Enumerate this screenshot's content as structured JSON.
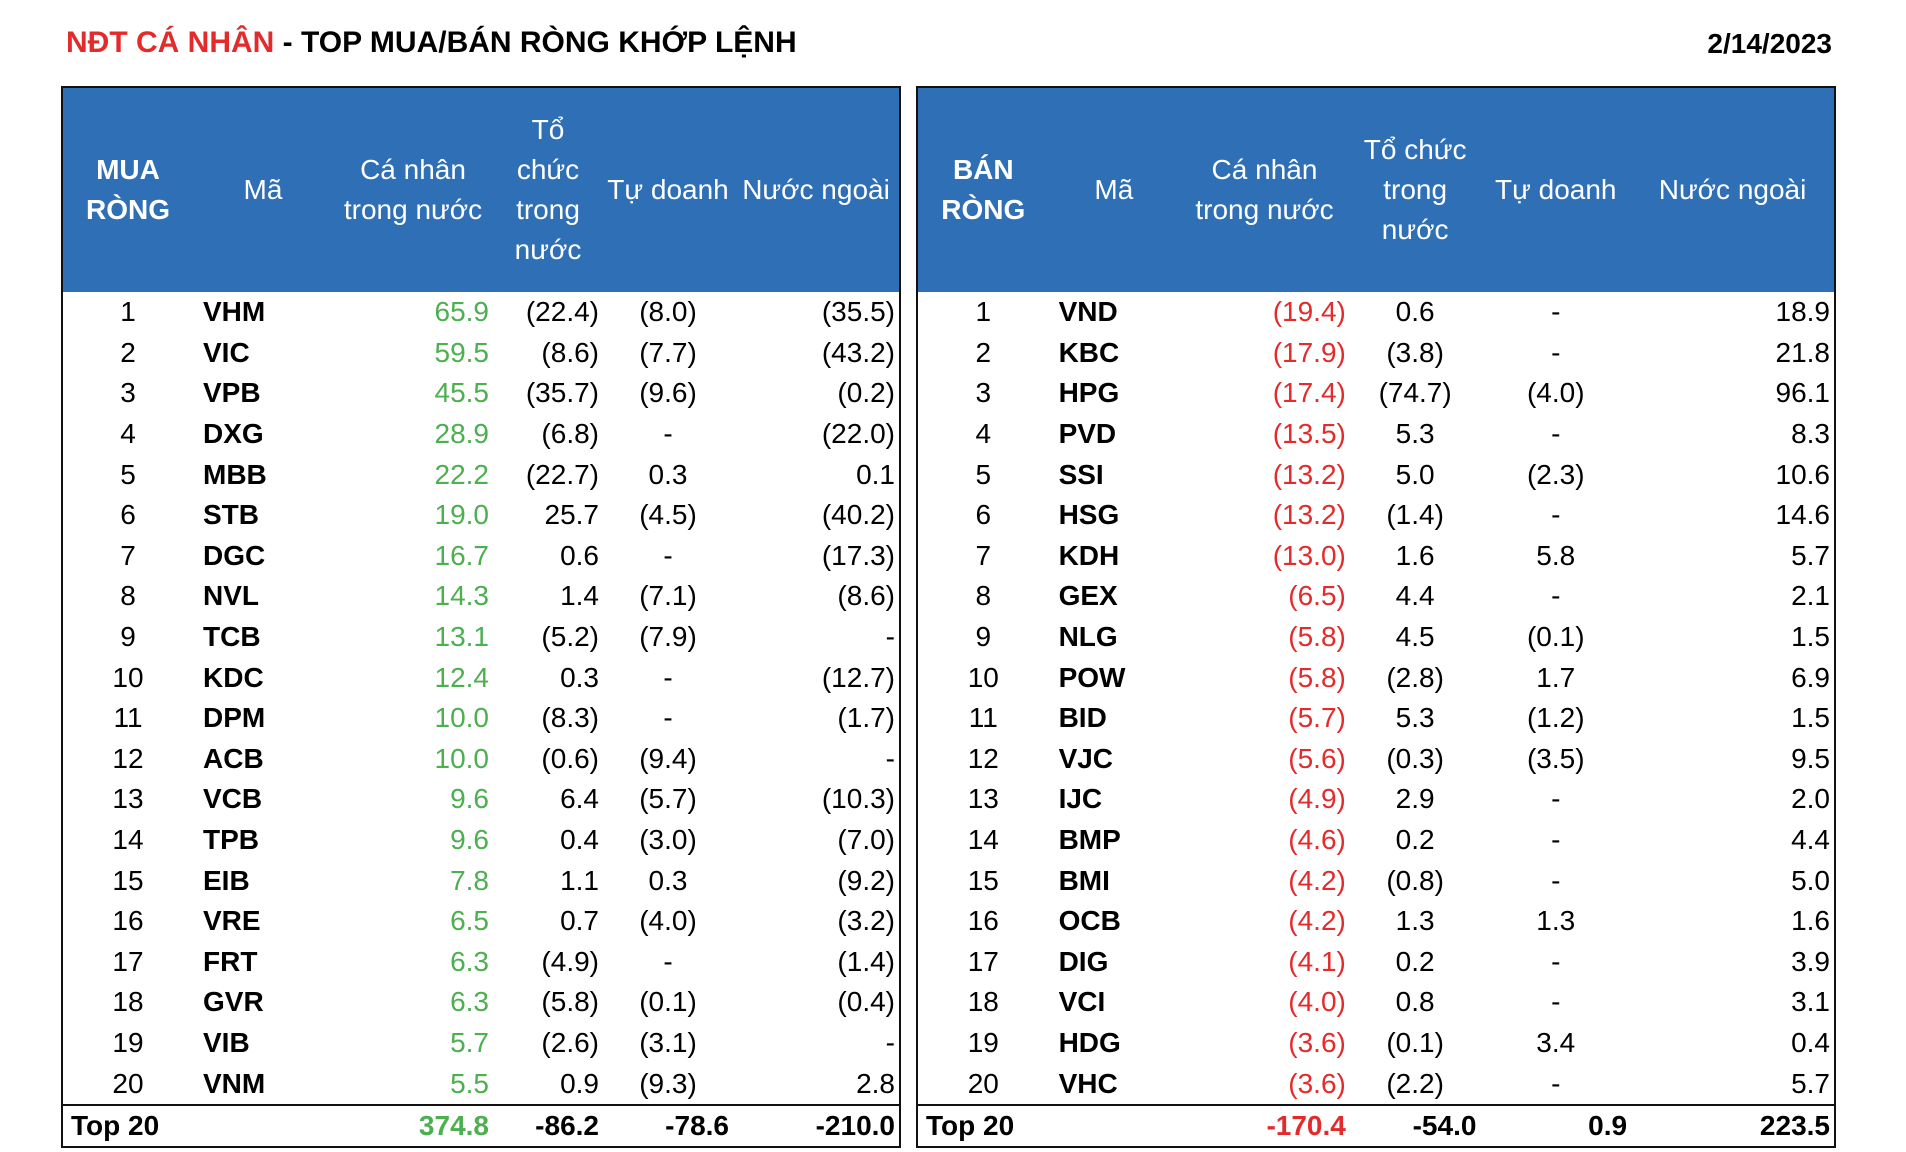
{
  "title": {
    "part_red": "NĐT CÁ NHÂN",
    "part_black": " - TOP MUA/BÁN RÒNG KHỚP LỆNH"
  },
  "date": "2/14/2023",
  "colors": {
    "header_bg": "#2f6fb5",
    "positive": "#4caf50",
    "negative": "#e32b2b"
  },
  "chart_data": {
    "type": "table",
    "buy": {
      "headers": [
        "MUA RÒNG",
        "Mã",
        "Cá nhân trong nước",
        "Tổ chức trong nước",
        "Tự doanh",
        "Nước ngoài"
      ],
      "rows": [
        [
          "1",
          "VHM",
          "65.9",
          "(22.4)",
          "(8.0)",
          "(35.5)"
        ],
        [
          "2",
          "VIC",
          "59.5",
          "(8.6)",
          "(7.7)",
          "(43.2)"
        ],
        [
          "3",
          "VPB",
          "45.5",
          "(35.7)",
          "(9.6)",
          "(0.2)"
        ],
        [
          "4",
          "DXG",
          "28.9",
          "(6.8)",
          "-",
          "(22.0)"
        ],
        [
          "5",
          "MBB",
          "22.2",
          "(22.7)",
          "0.3",
          "0.1"
        ],
        [
          "6",
          "STB",
          "19.0",
          "25.7",
          "(4.5)",
          "(40.2)"
        ],
        [
          "7",
          "DGC",
          "16.7",
          "0.6",
          "-",
          "(17.3)"
        ],
        [
          "8",
          "NVL",
          "14.3",
          "1.4",
          "(7.1)",
          "(8.6)"
        ],
        [
          "9",
          "TCB",
          "13.1",
          "(5.2)",
          "(7.9)",
          "-"
        ],
        [
          "10",
          "KDC",
          "12.4",
          "0.3",
          "-",
          "(12.7)"
        ],
        [
          "11",
          "DPM",
          "10.0",
          "(8.3)",
          "-",
          "(1.7)"
        ],
        [
          "12",
          "ACB",
          "10.0",
          "(0.6)",
          "(9.4)",
          "-"
        ],
        [
          "13",
          "VCB",
          "9.6",
          "6.4",
          "(5.7)",
          "(10.3)"
        ],
        [
          "14",
          "TPB",
          "9.6",
          "0.4",
          "(3.0)",
          "(7.0)"
        ],
        [
          "15",
          "EIB",
          "7.8",
          "1.1",
          "0.3",
          "(9.2)"
        ],
        [
          "16",
          "VRE",
          "6.5",
          "0.7",
          "(4.0)",
          "(3.2)"
        ],
        [
          "17",
          "FRT",
          "6.3",
          "(4.9)",
          "-",
          "(1.4)"
        ],
        [
          "18",
          "GVR",
          "6.3",
          "(5.8)",
          "(0.1)",
          "(0.4)"
        ],
        [
          "19",
          "VIB",
          "5.7",
          "(2.6)",
          "(3.1)",
          "-"
        ],
        [
          "20",
          "VNM",
          "5.5",
          "0.9",
          "(9.3)",
          "2.8"
        ]
      ],
      "total": [
        "Top 20",
        "374.8",
        "-86.2",
        "-78.6",
        "-210.0"
      ]
    },
    "sell": {
      "headers": [
        "BÁN RÒNG",
        "Mã",
        "Cá nhân trong nước",
        "Tổ chức trong nước",
        "Tự doanh",
        "Nước ngoài"
      ],
      "rows": [
        [
          "1",
          "VND",
          "(19.4)",
          "0.6",
          "-",
          "18.9"
        ],
        [
          "2",
          "KBC",
          "(17.9)",
          "(3.8)",
          "-",
          "21.8"
        ],
        [
          "3",
          "HPG",
          "(17.4)",
          "(74.7)",
          "(4.0)",
          "96.1"
        ],
        [
          "4",
          "PVD",
          "(13.5)",
          "5.3",
          "-",
          "8.3"
        ],
        [
          "5",
          "SSI",
          "(13.2)",
          "5.0",
          "(2.3)",
          "10.6"
        ],
        [
          "6",
          "HSG",
          "(13.2)",
          "(1.4)",
          "-",
          "14.6"
        ],
        [
          "7",
          "KDH",
          "(13.0)",
          "1.6",
          "5.8",
          "5.7"
        ],
        [
          "8",
          "GEX",
          "(6.5)",
          "4.4",
          "-",
          "2.1"
        ],
        [
          "9",
          "NLG",
          "(5.8)",
          "4.5",
          "(0.1)",
          "1.5"
        ],
        [
          "10",
          "POW",
          "(5.8)",
          "(2.8)",
          "1.7",
          "6.9"
        ],
        [
          "11",
          "BID",
          "(5.7)",
          "5.3",
          "(1.2)",
          "1.5"
        ],
        [
          "12",
          "VJC",
          "(5.6)",
          "(0.3)",
          "(3.5)",
          "9.5"
        ],
        [
          "13",
          "IJC",
          "(4.9)",
          "2.9",
          "-",
          "2.0"
        ],
        [
          "14",
          "BMP",
          "(4.6)",
          "0.2",
          "-",
          "4.4"
        ],
        [
          "15",
          "BMI",
          "(4.2)",
          "(0.8)",
          "-",
          "5.0"
        ],
        [
          "16",
          "OCB",
          "(4.2)",
          "1.3",
          "1.3",
          "1.6"
        ],
        [
          "17",
          "DIG",
          "(4.1)",
          "0.2",
          "-",
          "3.9"
        ],
        [
          "18",
          "VCI",
          "(4.0)",
          "0.8",
          "-",
          "3.1"
        ],
        [
          "19",
          "HDG",
          "(3.6)",
          "(0.1)",
          "3.4",
          "0.4"
        ],
        [
          "20",
          "VHC",
          "(3.6)",
          "(2.2)",
          "-",
          "5.7"
        ]
      ],
      "total": [
        "Top 20",
        "-170.4",
        "-54.0",
        "0.9",
        "223.5"
      ]
    }
  }
}
